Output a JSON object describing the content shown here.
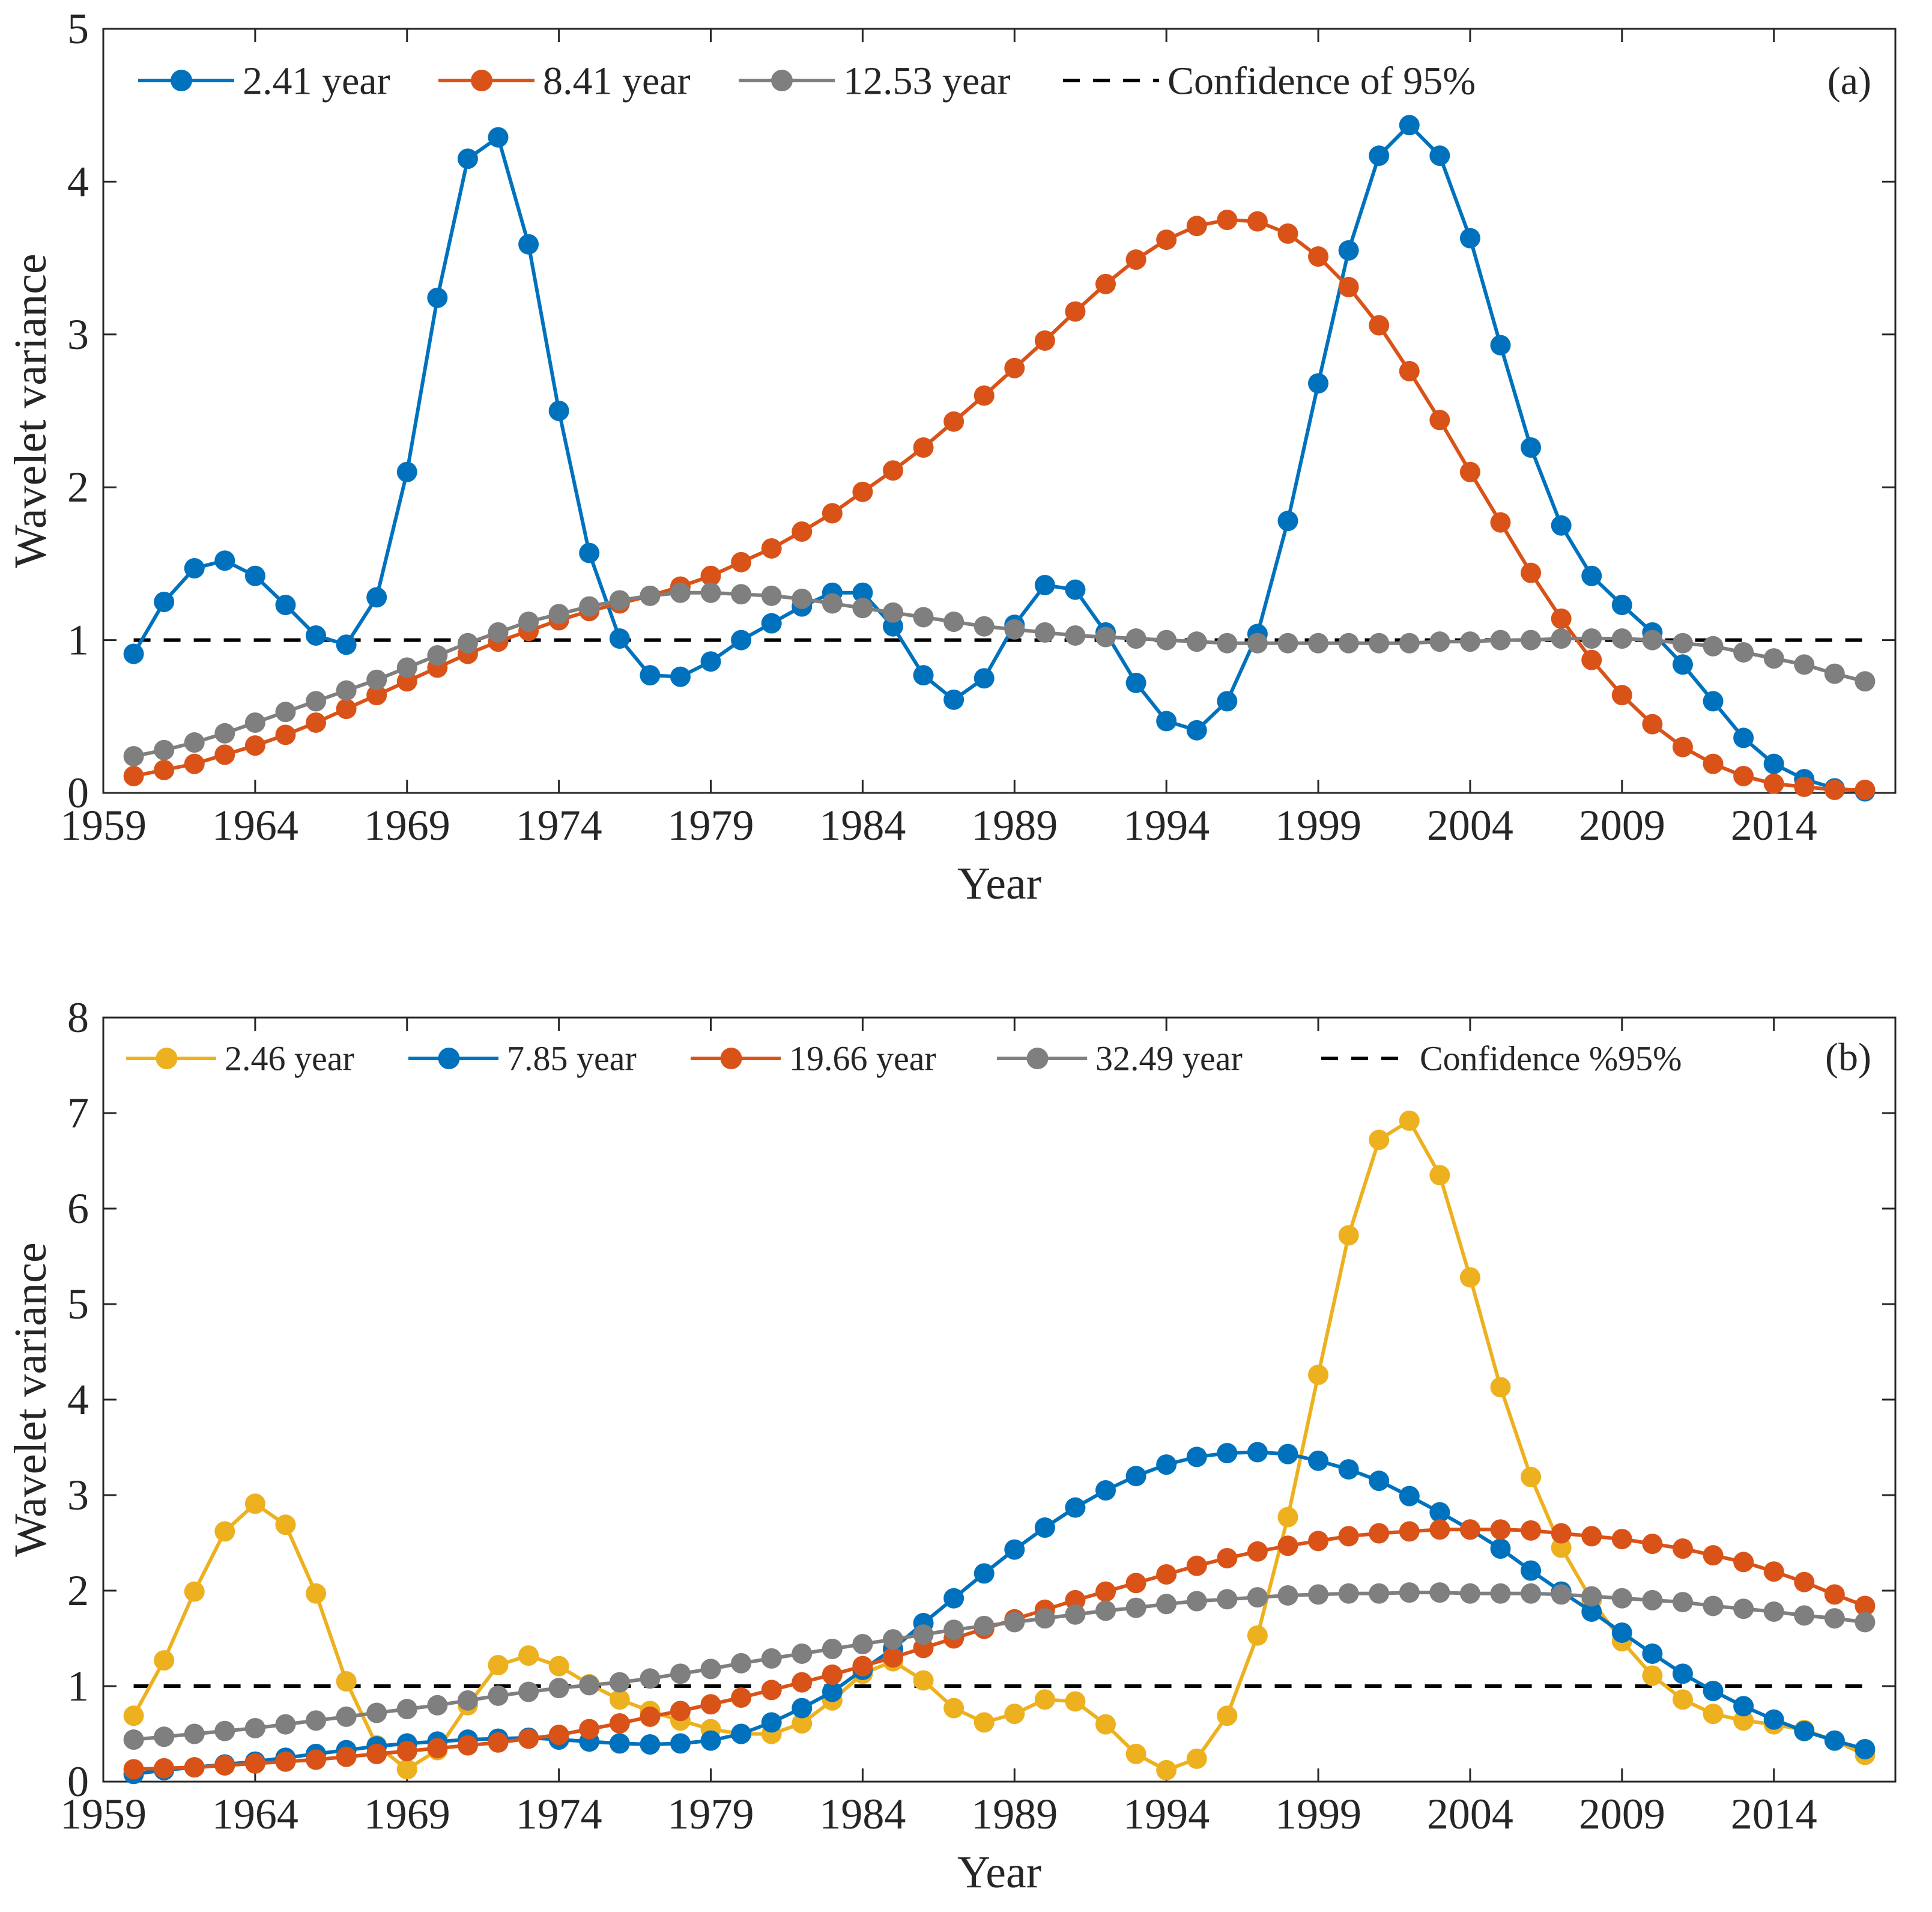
{
  "colors": {
    "blue": "#0072BD",
    "orange": "#D95319",
    "gray": "#7F7F7F",
    "yellow": "#EDB120",
    "confidence": "#000000",
    "axis": "#262626"
  },
  "chart_data": [
    {
      "type": "line",
      "panel_label": "(a)",
      "xlabel": "Year",
      "ylabel": "Wavelet variance",
      "xlim": [
        1959,
        2018
      ],
      "ylim": [
        0,
        5
      ],
      "xticks": [
        1959,
        1964,
        1969,
        1974,
        1979,
        1984,
        1989,
        1994,
        1999,
        2004,
        2009,
        2014
      ],
      "yticks": [
        0,
        1,
        2,
        3,
        4,
        5
      ],
      "x_start": 1960,
      "x_end": 2017,
      "legend_position": "top",
      "series": [
        {
          "name": "2.41 year",
          "color": "#0072BD",
          "values": [
            0.91,
            1.25,
            1.47,
            1.52,
            1.42,
            1.23,
            1.03,
            0.97,
            1.28,
            2.1,
            3.24,
            4.15,
            4.29,
            3.59,
            2.5,
            1.57,
            1.01,
            0.77,
            0.76,
            0.86,
            1.0,
            1.11,
            1.22,
            1.31,
            1.31,
            1.09,
            0.77,
            0.61,
            0.75,
            1.1,
            1.36,
            1.33,
            1.05,
            0.72,
            0.47,
            0.41,
            0.6,
            1.04,
            1.78,
            2.68,
            3.55,
            4.17,
            4.37,
            4.17,
            3.63,
            2.93,
            2.26,
            1.75,
            1.42,
            1.23,
            1.05,
            0.84,
            0.6,
            0.36,
            0.19,
            0.09,
            0.03,
            0.01
          ]
        },
        {
          "name": "8.41 year",
          "color": "#D95319",
          "values": [
            0.11,
            0.15,
            0.19,
            0.25,
            0.31,
            0.38,
            0.46,
            0.55,
            0.64,
            0.73,
            0.82,
            0.91,
            0.99,
            1.06,
            1.13,
            1.19,
            1.24,
            1.29,
            1.35,
            1.42,
            1.51,
            1.6,
            1.71,
            1.83,
            1.97,
            2.11,
            2.26,
            2.43,
            2.6,
            2.78,
            2.96,
            3.15,
            3.33,
            3.49,
            3.62,
            3.71,
            3.75,
            3.74,
            3.66,
            3.51,
            3.31,
            3.06,
            2.76,
            2.44,
            2.1,
            1.77,
            1.44,
            1.14,
            0.87,
            0.64,
            0.45,
            0.3,
            0.19,
            0.11,
            0.06,
            0.04,
            0.02,
            0.02
          ]
        },
        {
          "name": "12.53 year",
          "color": "#7F7F7F",
          "values": [
            0.24,
            0.28,
            0.33,
            0.39,
            0.46,
            0.53,
            0.6,
            0.67,
            0.74,
            0.82,
            0.9,
            0.98,
            1.05,
            1.12,
            1.17,
            1.22,
            1.26,
            1.29,
            1.31,
            1.31,
            1.3,
            1.29,
            1.27,
            1.24,
            1.21,
            1.18,
            1.15,
            1.12,
            1.09,
            1.07,
            1.05,
            1.03,
            1.02,
            1.01,
            1.0,
            0.99,
            0.98,
            0.98,
            0.98,
            0.98,
            0.98,
            0.98,
            0.98,
            0.99,
            0.99,
            1.0,
            1.0,
            1.01,
            1.01,
            1.01,
            1.0,
            0.98,
            0.96,
            0.92,
            0.88,
            0.84,
            0.78,
            0.73
          ]
        }
      ],
      "confidence": {
        "name": "Confidence of 95%",
        "value": 1
      }
    },
    {
      "type": "line",
      "panel_label": "(b)",
      "xlabel": "Year",
      "ylabel": "Wavelet variance",
      "xlim": [
        1959,
        2018
      ],
      "ylim": [
        0,
        8
      ],
      "xticks": [
        1959,
        1964,
        1969,
        1974,
        1979,
        1984,
        1989,
        1994,
        1999,
        2004,
        2009,
        2014
      ],
      "yticks": [
        0,
        1,
        2,
        3,
        4,
        5,
        6,
        7,
        8
      ],
      "x_start": 1960,
      "x_end": 2017,
      "legend_position": "top",
      "series": [
        {
          "name": "2.46 year",
          "color": "#EDB120",
          "values": [
            0.69,
            1.27,
            1.99,
            2.62,
            2.91,
            2.69,
            1.97,
            1.05,
            0.38,
            0.13,
            0.33,
            0.8,
            1.22,
            1.32,
            1.21,
            1.02,
            0.86,
            0.74,
            0.64,
            0.55,
            0.5,
            0.5,
            0.61,
            0.85,
            1.13,
            1.26,
            1.06,
            0.77,
            0.62,
            0.71,
            0.86,
            0.84,
            0.6,
            0.29,
            0.12,
            0.24,
            0.69,
            1.53,
            2.77,
            4.26,
            5.72,
            6.72,
            6.92,
            6.35,
            5.28,
            4.13,
            3.19,
            2.45,
            1.9,
            1.47,
            1.11,
            0.86,
            0.71,
            0.64,
            0.6,
            0.54,
            0.43,
            0.28
          ]
        },
        {
          "name": "7.85 year",
          "color": "#0072BD",
          "values": [
            0.08,
            0.12,
            0.15,
            0.18,
            0.21,
            0.25,
            0.29,
            0.33,
            0.37,
            0.4,
            0.42,
            0.44,
            0.45,
            0.46,
            0.44,
            0.42,
            0.4,
            0.39,
            0.4,
            0.43,
            0.5,
            0.62,
            0.77,
            0.94,
            1.17,
            1.39,
            1.66,
            1.92,
            2.18,
            2.43,
            2.66,
            2.87,
            3.05,
            3.2,
            3.32,
            3.4,
            3.44,
            3.45,
            3.43,
            3.36,
            3.27,
            3.15,
            2.99,
            2.82,
            2.64,
            2.44,
            2.21,
            1.99,
            1.78,
            1.56,
            1.34,
            1.13,
            0.95,
            0.79,
            0.65,
            0.53,
            0.43,
            0.34
          ]
        },
        {
          "name": "19.66 year",
          "color": "#D95319",
          "values": [
            0.13,
            0.14,
            0.15,
            0.17,
            0.19,
            0.21,
            0.23,
            0.26,
            0.29,
            0.32,
            0.35,
            0.38,
            0.41,
            0.45,
            0.49,
            0.55,
            0.61,
            0.68,
            0.74,
            0.81,
            0.88,
            0.96,
            1.04,
            1.12,
            1.21,
            1.3,
            1.4,
            1.5,
            1.6,
            1.7,
            1.8,
            1.9,
            1.99,
            2.08,
            2.17,
            2.26,
            2.34,
            2.41,
            2.47,
            2.52,
            2.57,
            2.6,
            2.62,
            2.64,
            2.64,
            2.64,
            2.63,
            2.6,
            2.57,
            2.54,
            2.49,
            2.44,
            2.37,
            2.3,
            2.2,
            2.09,
            1.96,
            1.84
          ]
        },
        {
          "name": "32.49 year",
          "color": "#7F7F7F",
          "values": [
            0.44,
            0.47,
            0.5,
            0.53,
            0.56,
            0.6,
            0.64,
            0.68,
            0.72,
            0.76,
            0.8,
            0.85,
            0.9,
            0.94,
            0.98,
            1.01,
            1.04,
            1.08,
            1.13,
            1.18,
            1.24,
            1.29,
            1.34,
            1.39,
            1.44,
            1.49,
            1.54,
            1.59,
            1.63,
            1.67,
            1.71,
            1.75,
            1.79,
            1.82,
            1.86,
            1.89,
            1.91,
            1.93,
            1.95,
            1.96,
            1.97,
            1.97,
            1.98,
            1.98,
            1.97,
            1.97,
            1.97,
            1.96,
            1.94,
            1.92,
            1.9,
            1.88,
            1.84,
            1.81,
            1.78,
            1.74,
            1.71,
            1.67
          ]
        }
      ],
      "confidence": {
        "name": "Confidence %95%",
        "value": 1
      }
    }
  ]
}
